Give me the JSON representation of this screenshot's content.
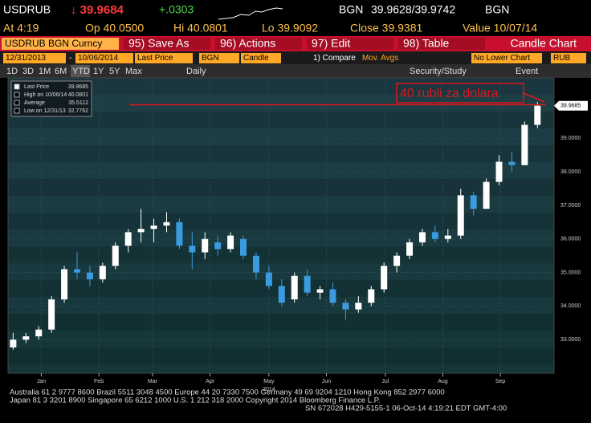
{
  "header": {
    "ticker": "USDRUB",
    "price": "↓ 39.9684",
    "change": "+.0303",
    "source1": "BGN",
    "bid_ask": "39.9628/39.9742",
    "source2": "BGN",
    "at": "At 4:19",
    "open": "Op 40.0500",
    "high": "Hi 40.0801",
    "low": "Lo 39.9092",
    "close": "Close 39.9381",
    "value": "Value 10/07/14"
  },
  "menu": {
    "security": "USDRUB BGN Curncy",
    "items": [
      "95) Save As",
      "96) Actions",
      "97) Edit",
      "98) Table"
    ],
    "chart_name": "Candle Chart"
  },
  "controls": {
    "start": "12/31/2013",
    "dash": "-",
    "end": "10/06/2014",
    "field": "Last Price",
    "source": "BGN",
    "style": "Candle",
    "compare": "1) Compare",
    "mov_avgs": "Mov. Avgs",
    "lower": "No Lower Chart",
    "currency": "RUB"
  },
  "ranges": {
    "buttons": [
      "1D",
      "3D",
      "1M",
      "6M",
      "YTD",
      "1Y",
      "5Y",
      "Max"
    ],
    "period": "Daily",
    "study": "Security/Study",
    "event": "Event"
  },
  "chart_data": {
    "type": "candlestick",
    "legend": [
      {
        "label": "Last Price",
        "value": "39.9685"
      },
      {
        "label": "High on 10/06/14",
        "value": "40.0801"
      },
      {
        "label": "Average",
        "value": "35.5112"
      },
      {
        "label": "Low on 12/31/13",
        "value": "32.7762"
      }
    ],
    "annotation": "40 rubli za dolara",
    "annotation_level": 40,
    "last_label": "39.9685",
    "last_value": 39.9685,
    "year_label": "2014",
    "x": [
      0,
      1,
      2,
      3,
      4,
      5,
      6,
      7,
      8,
      9,
      10,
      11,
      12,
      13,
      14,
      15,
      16,
      17,
      18,
      19,
      20,
      21,
      22,
      23,
      24,
      25,
      26,
      27,
      28,
      29,
      30,
      31,
      32,
      33,
      34,
      35,
      36,
      37,
      38,
      39,
      40,
      41
    ],
    "open": [
      32.77,
      33.0,
      33.1,
      33.3,
      34.2,
      35.1,
      35.0,
      34.8,
      35.2,
      35.8,
      36.2,
      36.3,
      36.4,
      36.5,
      35.8,
      35.6,
      35.9,
      35.7,
      36.0,
      35.5,
      35.0,
      34.6,
      34.2,
      34.9,
      34.4,
      34.5,
      34.1,
      33.9,
      34.1,
      34.5,
      35.2,
      35.5,
      35.9,
      36.2,
      36.0,
      36.1,
      37.3,
      36.9,
      37.7,
      38.3,
      38.2,
      39.4
    ],
    "high": [
      33.2,
      33.2,
      33.4,
      34.3,
      35.2,
      35.6,
      35.2,
      35.3,
      35.9,
      36.3,
      36.9,
      36.6,
      36.8,
      36.6,
      36.2,
      36.2,
      36.1,
      36.2,
      36.1,
      35.6,
      35.2,
      34.8,
      35.0,
      35.1,
      34.6,
      34.7,
      34.2,
      34.3,
      34.6,
      35.3,
      35.6,
      36.0,
      36.3,
      36.4,
      36.3,
      37.5,
      37.4,
      37.8,
      38.5,
      38.6,
      39.5,
      40.08
    ],
    "low": [
      32.7,
      32.9,
      33.0,
      33.2,
      34.1,
      34.8,
      34.6,
      34.7,
      35.1,
      35.6,
      35.9,
      35.9,
      36.2,
      35.7,
      35.1,
      35.4,
      35.5,
      35.6,
      35.4,
      34.8,
      34.5,
      34.0,
      34.1,
      34.3,
      34.2,
      34.0,
      33.6,
      33.8,
      34.0,
      34.4,
      35.0,
      35.4,
      35.8,
      35.9,
      35.9,
      36.0,
      36.7,
      36.9,
      37.6,
      38.0,
      38.2,
      39.3
    ],
    "close": [
      33.0,
      33.1,
      33.3,
      34.2,
      35.1,
      35.0,
      34.8,
      35.2,
      35.8,
      36.2,
      36.3,
      36.4,
      36.5,
      35.8,
      35.6,
      36.0,
      35.7,
      36.1,
      35.5,
      35.0,
      34.6,
      34.1,
      34.9,
      34.4,
      34.5,
      34.1,
      33.9,
      34.1,
      34.5,
      35.2,
      35.5,
      35.9,
      36.2,
      36.0,
      36.1,
      37.3,
      36.9,
      37.7,
      38.3,
      38.2,
      39.4,
      39.97
    ],
    "up_color": "#ffffff",
    "down_color": "#3b9be0",
    "xlim": [
      -0.4,
      42.3
    ],
    "xticks": [
      {
        "value": 2.2,
        "label": "Jan"
      },
      {
        "value": 6.7,
        "label": "Feb"
      },
      {
        "value": 10.9,
        "label": "Mar"
      },
      {
        "value": 15.4,
        "label": "Apr"
      },
      {
        "value": 20,
        "label": "May"
      },
      {
        "value": 24.5,
        "label": "Jun"
      },
      {
        "value": 29.1,
        "label": "Jul"
      },
      {
        "value": 33.6,
        "label": "Aug"
      },
      {
        "value": 38.1,
        "label": "Sep"
      }
    ],
    "ylim": [
      32.0,
      40.8
    ],
    "yticks": [
      {
        "value": 33,
        "label": "33.0000"
      },
      {
        "value": 34,
        "label": "34.0000"
      },
      {
        "value": 35,
        "label": "35.0000"
      },
      {
        "value": 36,
        "label": "36.0000"
      },
      {
        "value": 37,
        "label": "37.0000"
      },
      {
        "value": 38,
        "label": "38.0000"
      },
      {
        "value": 39,
        "label": "39.0000"
      }
    ],
    "grid": true
  },
  "footer": [
    "Australia 61 2 9777 8600 Brazil 5511 3048 4500 Europe 44 20 7330 7500 Germany 49 69 9204 1210 Hong Kong 852 2977 6000",
    "Japan 81 3 3201 8900         Singapore 65 6212 1000         U.S. 1 212 318 2000         Copyright 2014 Bloomberg Finance L.P.",
    "SN 672028 H429-5155-1 06-Oct-14  4:19:21 EDT  GMT-4:00"
  ]
}
